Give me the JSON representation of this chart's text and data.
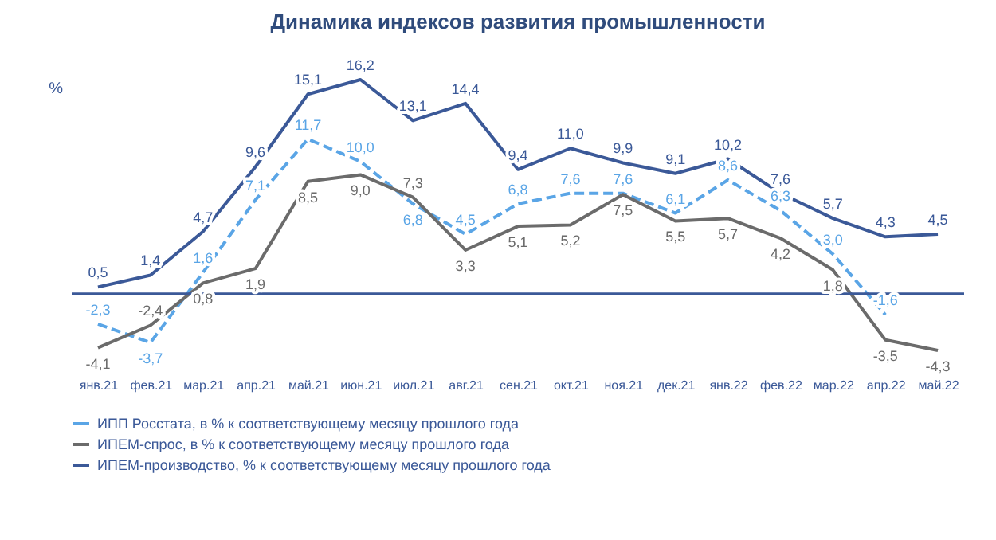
{
  "chart_data": {
    "type": "line",
    "title": "Динамика индексов развития промышленности",
    "ylabel": "%",
    "categories": [
      "янв.21",
      "фев.21",
      "мар.21",
      "апр.21",
      "май.21",
      "июн.21",
      "июл.21",
      "авг.21",
      "сен.21",
      "окт.21",
      "ноя.21",
      "дек.21",
      "янв.22",
      "фев.22",
      "мар.22",
      "апр.22",
      "май.22"
    ],
    "series": [
      {
        "name": "ИПП Росстата, в % к соответствующему месяцу прошлого года",
        "color": "#5aa5e6",
        "line_style": "dashed",
        "values": [
          -2.3,
          -3.7,
          1.6,
          7.1,
          11.7,
          10.0,
          6.8,
          4.5,
          6.8,
          7.6,
          7.6,
          6.1,
          8.6,
          6.3,
          3.0,
          -1.6,
          null
        ],
        "value_labels": [
          "-2,3",
          "-3,7",
          "1,6",
          "7,1",
          "11,7",
          "10,0",
          "6,8",
          "4,5",
          "6,8",
          "7,6",
          "7,6",
          "6,1",
          "8,6",
          "6,3",
          "3,0",
          "-1,6",
          null
        ]
      },
      {
        "name": "ИПЕМ-спрос, в % к соответствующему месяцу прошлого года",
        "color": "#6b6b6b",
        "line_style": "solid",
        "values": [
          -4.1,
          -2.4,
          0.8,
          1.9,
          8.5,
          9.0,
          7.3,
          3.3,
          5.1,
          5.2,
          7.5,
          5.5,
          5.7,
          4.2,
          1.8,
          -3.5,
          -4.3
        ],
        "value_labels": [
          "-4,1",
          "-2,4",
          "0,8",
          "1,9",
          "8,5",
          "9,0",
          "7,3",
          "3,3",
          "5,1",
          "5,2",
          "7,5",
          "5,5",
          "5,7",
          "4,2",
          "1,8",
          "-3,5",
          "-4,3"
        ]
      },
      {
        "name": "ИПЕМ-производство, % к соответствующему месяцу прошлого года",
        "color": "#3b5998",
        "line_style": "solid",
        "values": [
          0.5,
          1.4,
          4.7,
          9.6,
          15.1,
          16.2,
          13.1,
          14.4,
          9.4,
          11.0,
          9.9,
          9.1,
          10.2,
          7.6,
          5.7,
          4.3,
          4.5
        ],
        "value_labels": [
          "0,5",
          "1,4",
          "4,7",
          "9,6",
          "15,1",
          "16,2",
          "13,1",
          "14,4",
          "9,4",
          "11,0",
          "9,9",
          "9,1",
          "10,2",
          "7,6",
          "5,7",
          "4,3",
          "4,5"
        ]
      }
    ],
    "ref_lines": [
      {
        "axis": "y",
        "value": 0,
        "color": "#3b5998"
      }
    ],
    "legend": "bottom",
    "tick_labels": "x",
    "marker": "none"
  }
}
